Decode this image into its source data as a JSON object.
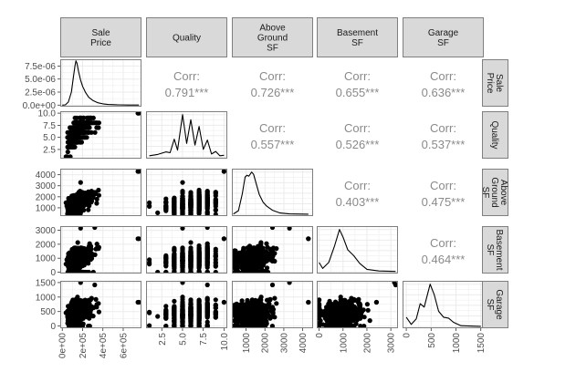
{
  "chart_data": {
    "type": "scatterplot-matrix",
    "title": "",
    "variables": [
      {
        "key": "sale_price",
        "label": [
          "Sale",
          "Price"
        ],
        "range": [
          -20000,
          780000
        ],
        "ticks": [
          0,
          200000,
          400000,
          600000
        ],
        "tick_labels": [
          "0e+00",
          "2e+05",
          "4e+05",
          "6e+05"
        ]
      },
      {
        "key": "quality",
        "label": [
          "Quality"
        ],
        "range": [
          0.6,
          10.4
        ],
        "ticks": [
          2.5,
          5.0,
          7.5,
          10.0
        ],
        "tick_labels": [
          "2.5",
          "5.0",
          "7.5",
          "10.0"
        ]
      },
      {
        "key": "above_ground_sf",
        "label": [
          "Above",
          "Ground",
          "SF"
        ],
        "range": [
          250,
          4550
        ],
        "ticks": [
          1000,
          2000,
          3000,
          4000
        ],
        "tick_labels": [
          "1000",
          "2000",
          "3000",
          "4000"
        ]
      },
      {
        "key": "basement_sf",
        "label": [
          "Basement",
          "SF"
        ],
        "range": [
          -100,
          3300
        ],
        "ticks": [
          0,
          1000,
          2000,
          3000
        ],
        "tick_labels": [
          "0",
          "1000",
          "2000",
          "3000"
        ]
      },
      {
        "key": "garage_sf",
        "label": [
          "Garage",
          "SF"
        ],
        "range": [
          -75,
          1560
        ],
        "ticks": [
          0,
          500,
          1000,
          1500
        ],
        "tick_labels": [
          "0",
          "500",
          "1000",
          "1500"
        ]
      }
    ],
    "density_axis": {
      "range": [
        -3e-07,
        8.8e-06
      ],
      "ticks": [
        0,
        2.5e-06,
        5e-06,
        7.5e-06
      ],
      "tick_labels": [
        "0.0e+00",
        "2.5e-06",
        "5.0e-06",
        "7.5e-06"
      ]
    },
    "correlations": [
      {
        "row": 0,
        "col": 1,
        "label": "Corr:",
        "value": "0.791***"
      },
      {
        "row": 0,
        "col": 2,
        "label": "Corr:",
        "value": "0.726***"
      },
      {
        "row": 0,
        "col": 3,
        "label": "Corr:",
        "value": "0.655***"
      },
      {
        "row": 0,
        "col": 4,
        "label": "Corr:",
        "value": "0.636***"
      },
      {
        "row": 1,
        "col": 2,
        "label": "Corr:",
        "value": "0.557***"
      },
      {
        "row": 1,
        "col": 3,
        "label": "Corr:",
        "value": "0.526***"
      },
      {
        "row": 1,
        "col": 4,
        "label": "Corr:",
        "value": "0.537***"
      },
      {
        "row": 2,
        "col": 3,
        "label": "Corr:",
        "value": "0.403***"
      },
      {
        "row": 2,
        "col": 4,
        "label": "Corr:",
        "value": "0.475***"
      },
      {
        "row": 3,
        "col": 4,
        "label": "Corr:",
        "value": "0.464***"
      }
    ],
    "densities": {
      "sale_price": [
        [
          0,
          0
        ],
        [
          30000,
          0.05
        ],
        [
          60000,
          0.6
        ],
        [
          90000,
          2.5
        ],
        [
          110000,
          5.5
        ],
        [
          125000,
          7.5
        ],
        [
          135000,
          8.5
        ],
        [
          145000,
          8.0
        ],
        [
          160000,
          6.5
        ],
        [
          180000,
          4.8
        ],
        [
          200000,
          3.6
        ],
        [
          230000,
          2.4
        ],
        [
          260000,
          1.5
        ],
        [
          300000,
          0.9
        ],
        [
          350000,
          0.45
        ],
        [
          400000,
          0.25
        ],
        [
          450000,
          0.12
        ],
        [
          550000,
          0.05
        ],
        [
          650000,
          0.02
        ],
        [
          755000,
          0.01
        ]
      ],
      "quality": [
        [
          1,
          0.03
        ],
        [
          2,
          0.06
        ],
        [
          3,
          0.12
        ],
        [
          3.5,
          0.1
        ],
        [
          4,
          0.42
        ],
        [
          4.4,
          0.16
        ],
        [
          5,
          1.0
        ],
        [
          5.5,
          0.32
        ],
        [
          6,
          0.88
        ],
        [
          6.5,
          0.28
        ],
        [
          7,
          0.72
        ],
        [
          7.5,
          0.18
        ],
        [
          8,
          0.4
        ],
        [
          8.5,
          0.07
        ],
        [
          9,
          0.13
        ],
        [
          9.5,
          0.03
        ],
        [
          10,
          0.04
        ]
      ],
      "above_ground_sf": [
        [
          330,
          0.01
        ],
        [
          600,
          0.08
        ],
        [
          800,
          0.45
        ],
        [
          950,
          0.82
        ],
        [
          1050,
          0.86
        ],
        [
          1150,
          0.84
        ],
        [
          1300,
          0.93
        ],
        [
          1400,
          0.88
        ],
        [
          1550,
          0.66
        ],
        [
          1700,
          0.44
        ],
        [
          1900,
          0.27
        ],
        [
          2100,
          0.18
        ],
        [
          2400,
          0.09
        ],
        [
          2800,
          0.03
        ],
        [
          3300,
          0.01
        ],
        [
          4300,
          0.005
        ]
      ],
      "basement_sf": [
        [
          0,
          0.22
        ],
        [
          150,
          0.08
        ],
        [
          400,
          0.22
        ],
        [
          650,
          0.62
        ],
        [
          850,
          1.0
        ],
        [
          1000,
          0.82
        ],
        [
          1200,
          0.52
        ],
        [
          1450,
          0.38
        ],
        [
          1700,
          0.2
        ],
        [
          2000,
          0.06
        ],
        [
          2500,
          0.02
        ],
        [
          3200,
          0.01
        ]
      ],
      "garage_sf": [
        [
          0,
          0.22
        ],
        [
          100,
          0.05
        ],
        [
          200,
          0.18
        ],
        [
          280,
          0.54
        ],
        [
          360,
          0.46
        ],
        [
          480,
          1.0
        ],
        [
          560,
          0.76
        ],
        [
          650,
          0.36
        ],
        [
          750,
          0.22
        ],
        [
          850,
          0.2
        ],
        [
          950,
          0.1
        ],
        [
          1100,
          0.02
        ],
        [
          1500,
          0.005
        ]
      ]
    },
    "scatter_description": "Dense black point clouds in lower-triangle panels; Quality panels show vertical columns at integer ratings 1-10; basement and garage panels show a row of points at 0"
  },
  "strip_labels": {
    "top": [
      [
        "Sale",
        "Price"
      ],
      [
        "Quality"
      ],
      [
        "Above",
        "Ground",
        "SF"
      ],
      [
        "Basement",
        "SF"
      ],
      [
        "Garage",
        "SF"
      ]
    ],
    "right": [
      [
        "Sale",
        "Price"
      ],
      [
        "Quality"
      ],
      [
        "Above",
        "Ground",
        "SF"
      ],
      [
        "Basement",
        "SF"
      ],
      [
        "Garage",
        "SF"
      ]
    ]
  },
  "colors": {
    "strip_fill": "#d9d9d9",
    "strip_border": "#7f7f7f",
    "panel_border": "#7f7f7f",
    "grid": "#ebebeb",
    "point": "#000000",
    "corr_text": "#8a8a8a",
    "tick_text": "#4d4d4d"
  }
}
